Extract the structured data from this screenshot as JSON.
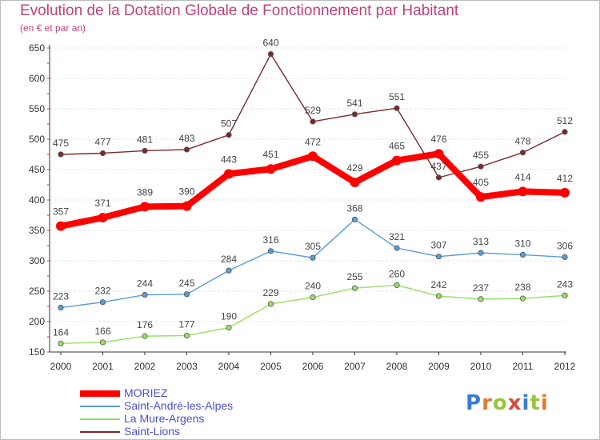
{
  "header": {
    "title": "Evolution de la Dotation Globale de Fonctionnement par Habitant",
    "subtitle": "(en € et par an)"
  },
  "logo": {
    "letters": [
      "P",
      "r",
      "o",
      "x",
      "i",
      "t",
      "i"
    ],
    "colors": [
      "#3a7bd5",
      "#e07b2c",
      "#9ac33c",
      "#d94a3a",
      "#3a7bd5",
      "#9ac33c",
      "#e07b2c"
    ]
  },
  "chart_data": {
    "type": "line",
    "title": "Evolution de la Dotation Globale de Fonctionnement par Habitant",
    "subtitle": "(en € et par an)",
    "x": [
      "2000",
      "2001",
      "2002",
      "2003",
      "2004",
      "2005",
      "2006",
      "2007",
      "2008",
      "2009",
      "2010",
      "2011",
      "2012"
    ],
    "ylim": [
      150,
      650
    ],
    "yticks": [
      150,
      200,
      250,
      300,
      350,
      400,
      450,
      500,
      550,
      600,
      650
    ],
    "grid": "horizontal",
    "legend_position": "bottom-left",
    "series": [
      {
        "name": "MORIEZ",
        "color": "#ff0000",
        "values": [
          357,
          371,
          389,
          390,
          443,
          451,
          472,
          429,
          465,
          476,
          405,
          414,
          412
        ]
      },
      {
        "name": "Saint-André-les-Alpes",
        "color": "#5b9bd5",
        "values": [
          223,
          232,
          244,
          245,
          284,
          316,
          305,
          368,
          321,
          307,
          313,
          310,
          306
        ]
      },
      {
        "name": "La Mure-Argens",
        "color": "#99dd66",
        "values": [
          164,
          166,
          176,
          177,
          190,
          229,
          240,
          255,
          260,
          242,
          237,
          238,
          243
        ]
      },
      {
        "name": "Saint-Lions",
        "color": "#7a2a2a",
        "values": [
          475,
          477,
          481,
          483,
          507,
          640,
          529,
          541,
          551,
          437,
          455,
          478,
          512
        ]
      }
    ]
  }
}
